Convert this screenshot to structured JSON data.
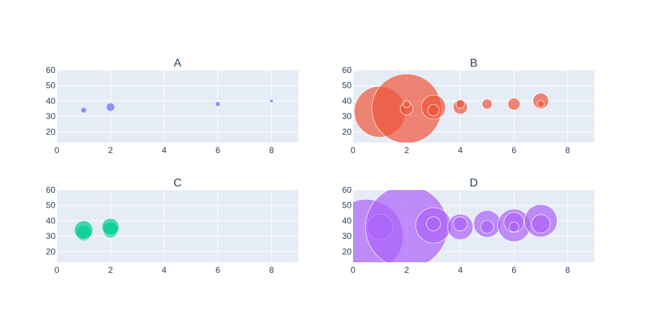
{
  "chart_data": [
    {
      "type": "scatter",
      "title": "A",
      "color": "#636EFA",
      "xlim": [
        0,
        9
      ],
      "ylim": [
        13,
        60
      ],
      "xticks": [
        0,
        2,
        4,
        6,
        8
      ],
      "yticks": [
        20,
        30,
        40,
        50,
        60
      ],
      "points": [
        {
          "x": 1,
          "y": 34,
          "size": 4
        },
        {
          "x": 2,
          "y": 36,
          "size": 6
        },
        {
          "x": 6,
          "y": 38,
          "size": 3.5
        },
        {
          "x": 8,
          "y": 40,
          "size": 2.5
        }
      ]
    },
    {
      "type": "scatter",
      "title": "B",
      "color": "#EF553B",
      "xlim": [
        0,
        9
      ],
      "ylim": [
        13,
        60
      ],
      "xticks": [
        0,
        2,
        4,
        6,
        8
      ],
      "yticks": [
        20,
        30,
        40,
        50,
        60
      ],
      "points": [
        {
          "x": 1,
          "y": 33,
          "size": 36
        },
        {
          "x": 2,
          "y": 35,
          "size": 49
        },
        {
          "x": 2,
          "y": 35,
          "size": 9
        },
        {
          "x": 2,
          "y": 38,
          "size": 5
        },
        {
          "x": 3,
          "y": 36,
          "size": 17
        },
        {
          "x": 3,
          "y": 34,
          "size": 8
        },
        {
          "x": 4,
          "y": 36,
          "size": 10
        },
        {
          "x": 4,
          "y": 38,
          "size": 6
        },
        {
          "x": 5,
          "y": 38,
          "size": 7
        },
        {
          "x": 6,
          "y": 38,
          "size": 8.5
        },
        {
          "x": 7,
          "y": 40,
          "size": 11
        },
        {
          "x": 7,
          "y": 38,
          "size": 5
        }
      ]
    },
    {
      "type": "scatter",
      "title": "C",
      "color": "#00CC96",
      "xlim": [
        0,
        9
      ],
      "ylim": [
        13,
        60
      ],
      "xticks": [
        0,
        2,
        4,
        6,
        8
      ],
      "yticks": [
        20,
        30,
        40,
        50,
        60
      ],
      "points": [
        {
          "x": 1,
          "y": 32,
          "size": 11
        },
        {
          "x": 1,
          "y": 34,
          "size": 13
        },
        {
          "x": 2,
          "y": 34,
          "size": 11
        },
        {
          "x": 2,
          "y": 36,
          "size": 12
        }
      ]
    },
    {
      "type": "scatter",
      "title": "D",
      "color": "#AB63FA",
      "xlim": [
        0,
        9
      ],
      "ylim": [
        13,
        60
      ],
      "xticks": [
        0,
        2,
        4,
        6,
        8
      ],
      "yticks": [
        20,
        30,
        40,
        50,
        60
      ],
      "points": [
        {
          "x": 0.5,
          "y": 30,
          "size": 52
        },
        {
          "x": 1,
          "y": 36,
          "size": 18
        },
        {
          "x": 2,
          "y": 36,
          "size": 58
        },
        {
          "x": 3,
          "y": 37,
          "size": 25
        },
        {
          "x": 3,
          "y": 38,
          "size": 10
        },
        {
          "x": 4,
          "y": 36,
          "size": 18
        },
        {
          "x": 4,
          "y": 38,
          "size": 10
        },
        {
          "x": 5,
          "y": 38,
          "size": 19
        },
        {
          "x": 5,
          "y": 36,
          "size": 9
        },
        {
          "x": 6,
          "y": 37,
          "size": 23
        },
        {
          "x": 6,
          "y": 39,
          "size": 14
        },
        {
          "x": 6,
          "y": 36,
          "size": 7
        },
        {
          "x": 7,
          "y": 40,
          "size": 23
        },
        {
          "x": 7,
          "y": 38,
          "size": 13
        }
      ]
    }
  ]
}
